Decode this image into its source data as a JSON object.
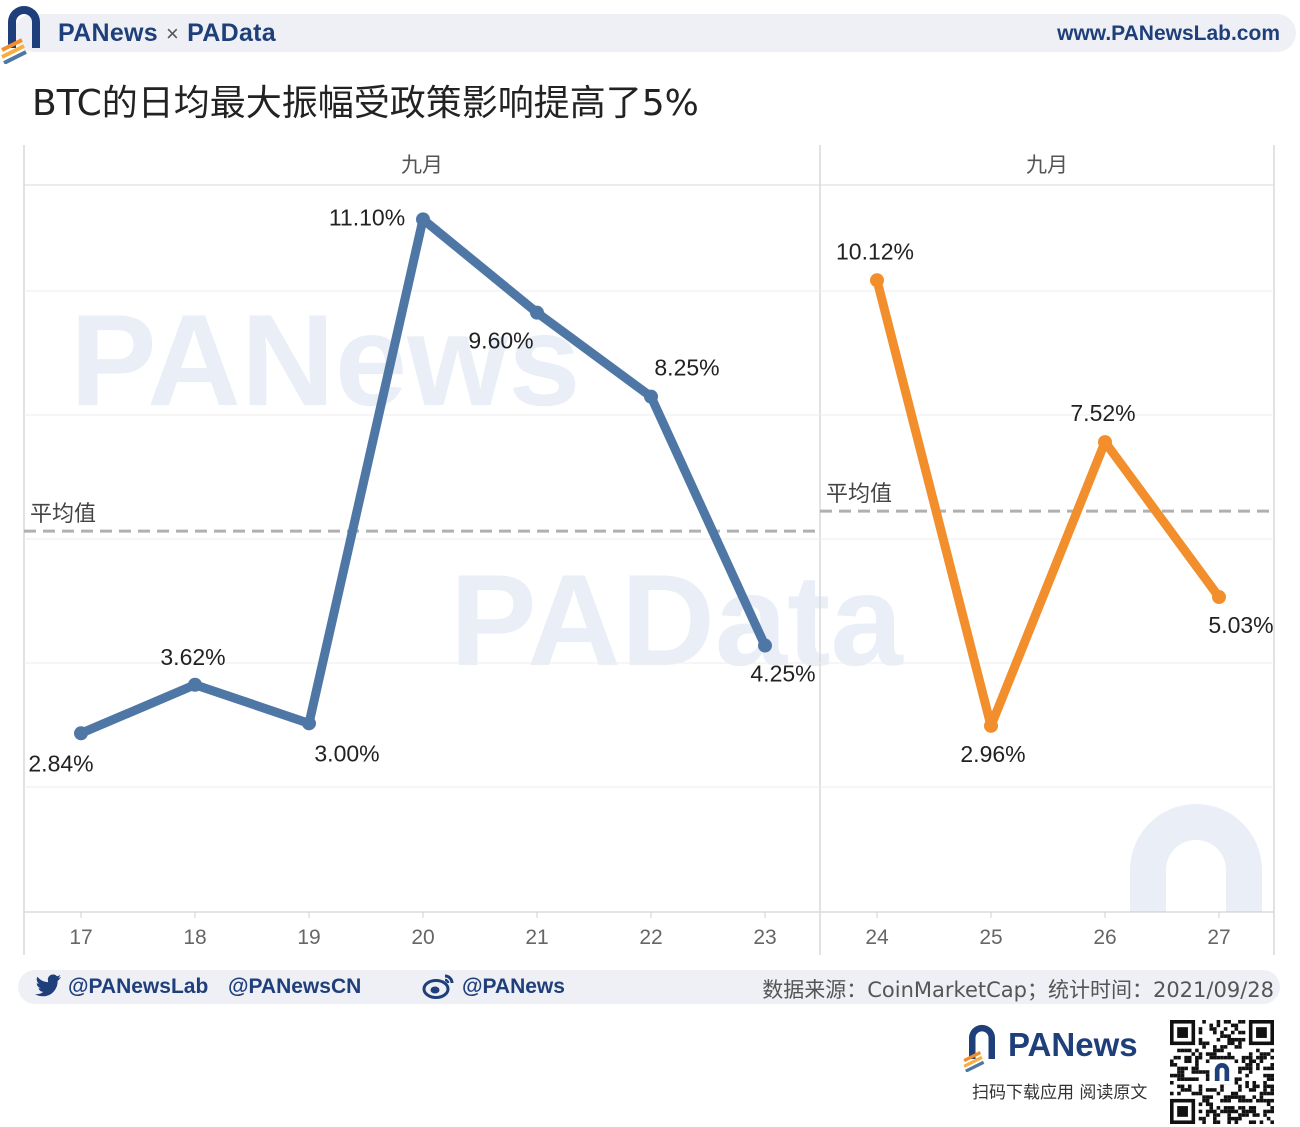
{
  "header": {
    "brand_left": "PANews",
    "brand_sep": "×",
    "brand_right": "PAData",
    "site": "www.PANewsLab.com"
  },
  "title": "BTC的日均最大振幅受政策影响提高了5%",
  "colors": {
    "series_before": "#4e77a5",
    "series_after": "#f28e2b",
    "avg_line": "#b0b0b0",
    "brand": "#1f3f7a"
  },
  "chart_data": [
    {
      "type": "line",
      "panel_header": "九月",
      "x": [
        "17",
        "18",
        "19",
        "20",
        "21",
        "22",
        "23"
      ],
      "values": [
        2.84,
        3.62,
        3.0,
        11.1,
        9.6,
        8.25,
        4.25
      ],
      "data_labels": [
        "2.84%",
        "3.62%",
        "3.00%",
        "11.10%",
        "9.60%",
        "8.25%",
        "4.25%"
      ],
      "color": "#4e77a5",
      "reference_line": {
        "label": "平均值",
        "value": 6.09
      }
    },
    {
      "type": "line",
      "panel_header": "九月",
      "x": [
        "24",
        "25",
        "26",
        "27"
      ],
      "values": [
        10.12,
        2.96,
        7.52,
        5.03
      ],
      "data_labels": [
        "10.12%",
        "2.96%",
        "7.52%",
        "5.03%"
      ],
      "color": "#f28e2b",
      "reference_line": {
        "label": "平均值",
        "value": 6.41
      }
    }
  ],
  "chart_axes": {
    "ylim": [
      0,
      11.7
    ],
    "gridlines": true,
    "y_ticks_shown": false
  },
  "watermarks": [
    "PANews",
    "PAData"
  ],
  "footer": {
    "twitter_1": "@PANewsLab",
    "twitter_2": "@PANewsCN",
    "weibo": "@PANews",
    "source": "数据来源：CoinMarketCap；统计时间：2021/09/28"
  },
  "bottom_brand": {
    "name": "PANews",
    "qr_caption": "扫码下载应用  阅读原文"
  }
}
